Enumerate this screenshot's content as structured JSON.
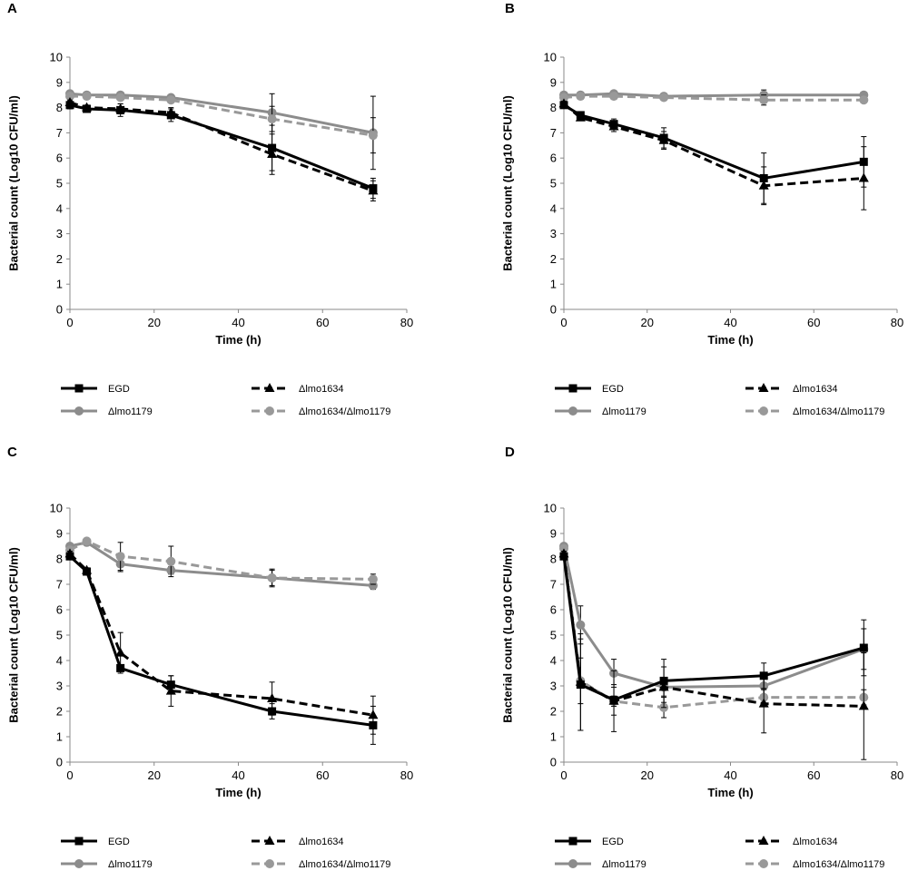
{
  "figure": {
    "colors": {
      "black": "#000000",
      "gray": "#8c8c8c",
      "gray_dashed": "#999999"
    }
  },
  "chart_data": [
    {
      "panel": "A",
      "type": "line",
      "xlabel": "Time (h)",
      "ylabel": "Bacterial count (Log10 CFU/ml)",
      "xlim": [
        0,
        80
      ],
      "ylim": [
        0,
        10
      ],
      "xticks": [
        0,
        20,
        40,
        60,
        80
      ],
      "yticks": [
        0,
        1,
        2,
        3,
        4,
        5,
        6,
        7,
        8,
        9,
        10
      ],
      "x": [
        0,
        4,
        12,
        24,
        48,
        72
      ],
      "series": [
        {
          "name": "EGD",
          "style": "solid",
          "color": "#000000",
          "marker": "square",
          "values": [
            8.1,
            7.95,
            7.9,
            7.7,
            6.4,
            4.8
          ],
          "errors": [
            0.15,
            0.1,
            0.25,
            0.25,
            0.9,
            0.4
          ]
        },
        {
          "name": "Δlmo1634",
          "style": "dashed",
          "color": "#000000",
          "marker": "triangle",
          "values": [
            8.2,
            8.0,
            7.95,
            7.8,
            6.15,
            4.7
          ],
          "errors": [
            0.1,
            0.1,
            0.2,
            0.2,
            0.8,
            0.4
          ]
        },
        {
          "name": "Δlmo1179",
          "style": "solid",
          "color": "#8c8c8c",
          "marker": "circle",
          "values": [
            8.55,
            8.5,
            8.5,
            8.4,
            7.8,
            7.0
          ],
          "errors": [
            0.1,
            0.05,
            0.1,
            0.1,
            0.75,
            1.45
          ]
        },
        {
          "name": "Δlmo1634/Δlmo1179",
          "style": "dashed",
          "color": "#999999",
          "marker": "circle",
          "values": [
            8.45,
            8.45,
            8.4,
            8.3,
            7.55,
            6.9
          ],
          "errors": [
            0.1,
            0.05,
            0.1,
            0.1,
            0.5,
            0.7
          ]
        }
      ]
    },
    {
      "panel": "B",
      "type": "line",
      "xlabel": "Time (h)",
      "ylabel": "Bacterial count (Log10 CFU/ml)",
      "xlim": [
        0,
        80
      ],
      "ylim": [
        0,
        10
      ],
      "xticks": [
        0,
        20,
        40,
        60,
        80
      ],
      "yticks": [
        0,
        1,
        2,
        3,
        4,
        5,
        6,
        7,
        8,
        9,
        10
      ],
      "x": [
        0,
        4,
        12,
        24,
        48,
        72
      ],
      "series": [
        {
          "name": "EGD",
          "style": "solid",
          "color": "#000000",
          "marker": "square",
          "values": [
            8.1,
            7.7,
            7.35,
            6.8,
            5.2,
            5.85
          ],
          "errors": [
            0.1,
            0.1,
            0.2,
            0.4,
            1.0,
            1.0
          ]
        },
        {
          "name": "Δlmo1634",
          "style": "dashed",
          "color": "#000000",
          "marker": "triangle",
          "values": [
            8.15,
            7.6,
            7.25,
            6.7,
            4.9,
            5.2
          ],
          "errors": [
            0.1,
            0.1,
            0.2,
            0.35,
            0.75,
            1.25
          ]
        },
        {
          "name": "Δlmo1179",
          "style": "solid",
          "color": "#8c8c8c",
          "marker": "circle",
          "values": [
            8.5,
            8.5,
            8.55,
            8.45,
            8.5,
            8.5
          ],
          "errors": [
            0.05,
            0.05,
            0.05,
            0.05,
            0.2,
            0.1
          ]
        },
        {
          "name": "Δlmo1634/Δlmo1179",
          "style": "dashed",
          "color": "#999999",
          "marker": "circle",
          "values": [
            8.4,
            8.45,
            8.45,
            8.4,
            8.3,
            8.3
          ],
          "errors": [
            0.05,
            0.05,
            0.05,
            0.05,
            0.2,
            0.1
          ]
        }
      ]
    },
    {
      "panel": "C",
      "type": "line",
      "xlabel": "Time (h)",
      "ylabel": "Bacterial count (Log10 CFU/ml)",
      "xlim": [
        0,
        80
      ],
      "ylim": [
        0,
        10
      ],
      "xticks": [
        0,
        20,
        40,
        60,
        80
      ],
      "yticks": [
        0,
        1,
        2,
        3,
        4,
        5,
        6,
        7,
        8,
        9,
        10
      ],
      "x": [
        0,
        4,
        12,
        24,
        48,
        72
      ],
      "series": [
        {
          "name": "EGD",
          "style": "solid",
          "color": "#000000",
          "marker": "square",
          "values": [
            8.1,
            7.5,
            3.7,
            3.05,
            2.0,
            1.45
          ],
          "errors": [
            0.1,
            0.1,
            0.1,
            0.35,
            0.3,
            0.75
          ]
        },
        {
          "name": "Δlmo1634",
          "style": "dashed",
          "color": "#000000",
          "marker": "triangle",
          "values": [
            8.2,
            7.55,
            4.3,
            2.8,
            2.5,
            1.85
          ],
          "errors": [
            0.1,
            0.1,
            0.8,
            0.6,
            0.65,
            0.75
          ]
        },
        {
          "name": "Δlmo1179",
          "style": "solid",
          "color": "#8c8c8c",
          "marker": "circle",
          "values": [
            8.5,
            8.65,
            7.8,
            7.55,
            7.25,
            6.95
          ],
          "errors": [
            0.1,
            0.05,
            0.3,
            0.15,
            0.3,
            0.15
          ]
        },
        {
          "name": "Δlmo1634/Δlmo1179",
          "style": "dashed",
          "color": "#999999",
          "marker": "circle",
          "values": [
            8.35,
            8.7,
            8.1,
            7.9,
            7.25,
            7.2
          ],
          "errors": [
            0.1,
            0.05,
            0.55,
            0.6,
            0.35,
            0.2
          ]
        }
      ]
    },
    {
      "panel": "D",
      "type": "line",
      "xlabel": "Time (h)",
      "ylabel": "Bacterial count (Log10 CFU/ml)",
      "xlim": [
        0,
        80
      ],
      "ylim": [
        0,
        10
      ],
      "xticks": [
        0,
        20,
        40,
        60,
        80
      ],
      "yticks": [
        0,
        1,
        2,
        3,
        4,
        5,
        6,
        7,
        8,
        9,
        10
      ],
      "x": [
        0,
        4,
        12,
        24,
        48,
        72
      ],
      "series": [
        {
          "name": "EGD",
          "style": "solid",
          "color": "#000000",
          "marker": "square",
          "values": [
            8.1,
            3.05,
            2.45,
            3.2,
            3.4,
            4.5
          ],
          "errors": [
            0.1,
            1.8,
            0.6,
            0.85,
            0.5,
            1.1
          ]
        },
        {
          "name": "Δlmo1634",
          "style": "dashed",
          "color": "#000000",
          "marker": "triangle",
          "values": [
            8.2,
            3.15,
            2.4,
            2.95,
            2.3,
            2.2
          ],
          "errors": [
            0.1,
            1.9,
            1.2,
            0.8,
            1.15,
            2.1
          ]
        },
        {
          "name": "Δlmo1179",
          "style": "solid",
          "color": "#8c8c8c",
          "marker": "circle",
          "values": [
            8.5,
            5.4,
            3.5,
            2.95,
            3.0,
            4.45
          ],
          "errors": [
            0.1,
            0.75,
            0.55,
            0.35,
            0.4,
            0.8
          ]
        },
        {
          "name": "Δlmo1634/Δlmo1179",
          "style": "dashed",
          "color": "#999999",
          "marker": "circle",
          "values": [
            8.4,
            3.2,
            2.4,
            2.15,
            2.55,
            2.55
          ],
          "errors": [
            0.1,
            0.9,
            0.2,
            0.4,
            0.3,
            0.3
          ]
        }
      ]
    }
  ]
}
